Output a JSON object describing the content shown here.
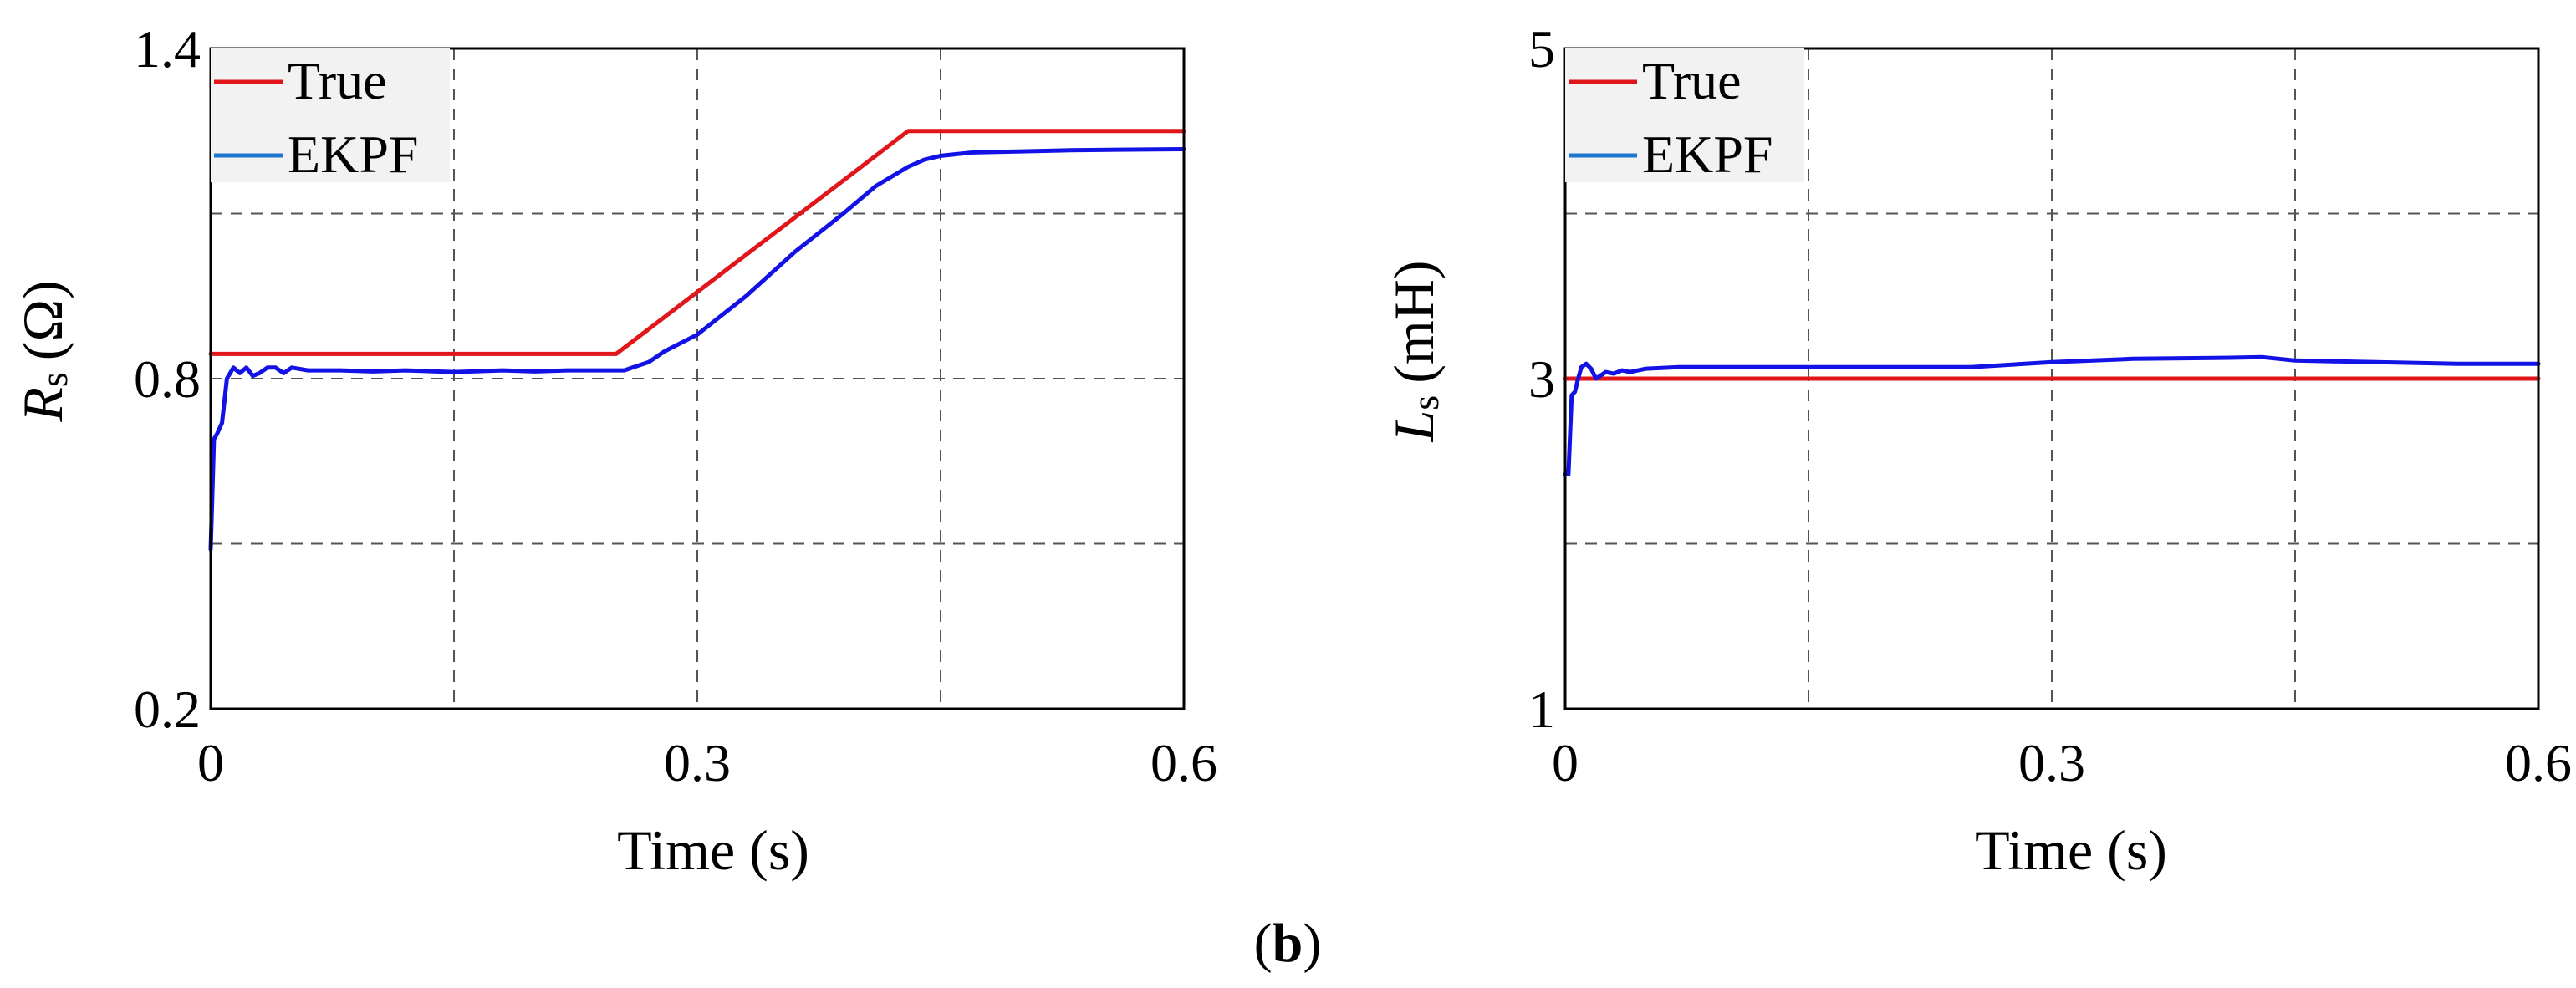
{
  "panel_label": {
    "open": "(",
    "letter": "b",
    "close": ")"
  },
  "colors": {
    "true": "#e0161b",
    "ekpf": "#1212e6",
    "legend_ekpf": "#1f77d0",
    "grid": "#555555"
  },
  "chart_data": [
    {
      "type": "line",
      "id": "rs",
      "title": "",
      "xlabel": "Time (s)",
      "ylabel": {
        "symbol": "R",
        "sub": "s",
        "unit": "(Ω)"
      },
      "xlim": [
        0,
        0.6
      ],
      "ylim": [
        0.2,
        1.4
      ],
      "xticks": [
        0,
        0.3,
        0.6
      ],
      "xtick_labels": [
        "0",
        "0.3",
        "0.6"
      ],
      "yticks": [
        0.2,
        0.8,
        1.4
      ],
      "ytick_labels": [
        "0.2",
        "0.8",
        "1.4"
      ],
      "xgrid": [
        0.15,
        0.3,
        0.45
      ],
      "ygrid": [
        0.5,
        0.8,
        1.1
      ],
      "legend": {
        "position": "top-left",
        "entries": [
          "True",
          "EKPF"
        ]
      },
      "series": [
        {
          "name": "True",
          "x": [
            0,
            0.25,
            0.43,
            0.6
          ],
          "y": [
            0.845,
            0.845,
            1.25,
            1.25
          ]
        },
        {
          "name": "EKPF",
          "x": [
            0,
            0.002,
            0.004,
            0.007,
            0.01,
            0.014,
            0.018,
            0.022,
            0.026,
            0.03,
            0.035,
            0.04,
            0.045,
            0.05,
            0.06,
            0.08,
            0.1,
            0.12,
            0.15,
            0.18,
            0.2,
            0.22,
            0.24,
            0.255,
            0.26,
            0.27,
            0.28,
            0.3,
            0.33,
            0.36,
            0.39,
            0.41,
            0.43,
            0.44,
            0.45,
            0.47,
            0.5,
            0.53,
            0.56,
            0.6
          ],
          "y": [
            0.49,
            0.69,
            0.7,
            0.72,
            0.8,
            0.82,
            0.81,
            0.82,
            0.805,
            0.81,
            0.82,
            0.82,
            0.81,
            0.82,
            0.815,
            0.815,
            0.813,
            0.815,
            0.812,
            0.815,
            0.813,
            0.815,
            0.815,
            0.815,
            0.82,
            0.83,
            0.85,
            0.88,
            0.95,
            1.03,
            1.1,
            1.15,
            1.185,
            1.198,
            1.205,
            1.211,
            1.213,
            1.215,
            1.216,
            1.217
          ]
        }
      ]
    },
    {
      "type": "line",
      "id": "ls",
      "title": "",
      "xlabel": "Time (s)",
      "ylabel": {
        "symbol": "L",
        "sub": "s",
        "unit": "(mH)"
      },
      "xlim": [
        0,
        0.6
      ],
      "ylim": [
        1,
        5
      ],
      "xticks": [
        0,
        0.3,
        0.6
      ],
      "xtick_labels": [
        "0",
        "0.3",
        "0.6"
      ],
      "yticks": [
        1,
        3,
        5
      ],
      "ytick_labels": [
        "1",
        "3",
        "5"
      ],
      "xgrid": [
        0.15,
        0.3,
        0.45
      ],
      "ygrid": [
        2,
        3,
        4
      ],
      "legend": {
        "position": "top-left",
        "entries": [
          "True",
          "EKPF"
        ]
      },
      "series": [
        {
          "name": "True",
          "x": [
            0,
            0.6
          ],
          "y": [
            3.0,
            3.0
          ]
        },
        {
          "name": "EKPF",
          "x": [
            0,
            0.002,
            0.004,
            0.006,
            0.008,
            0.01,
            0.013,
            0.016,
            0.019,
            0.022,
            0.025,
            0.03,
            0.035,
            0.04,
            0.05,
            0.07,
            0.1,
            0.15,
            0.2,
            0.25,
            0.3,
            0.35,
            0.4,
            0.43,
            0.45,
            0.5,
            0.55,
            0.6
          ],
          "y": [
            2.42,
            2.42,
            2.9,
            2.92,
            3.0,
            3.07,
            3.09,
            3.06,
            3.0,
            3.02,
            3.04,
            3.03,
            3.05,
            3.04,
            3.06,
            3.07,
            3.07,
            3.07,
            3.07,
            3.07,
            3.1,
            3.12,
            3.125,
            3.13,
            3.11,
            3.1,
            3.09,
            3.09
          ]
        }
      ]
    }
  ]
}
